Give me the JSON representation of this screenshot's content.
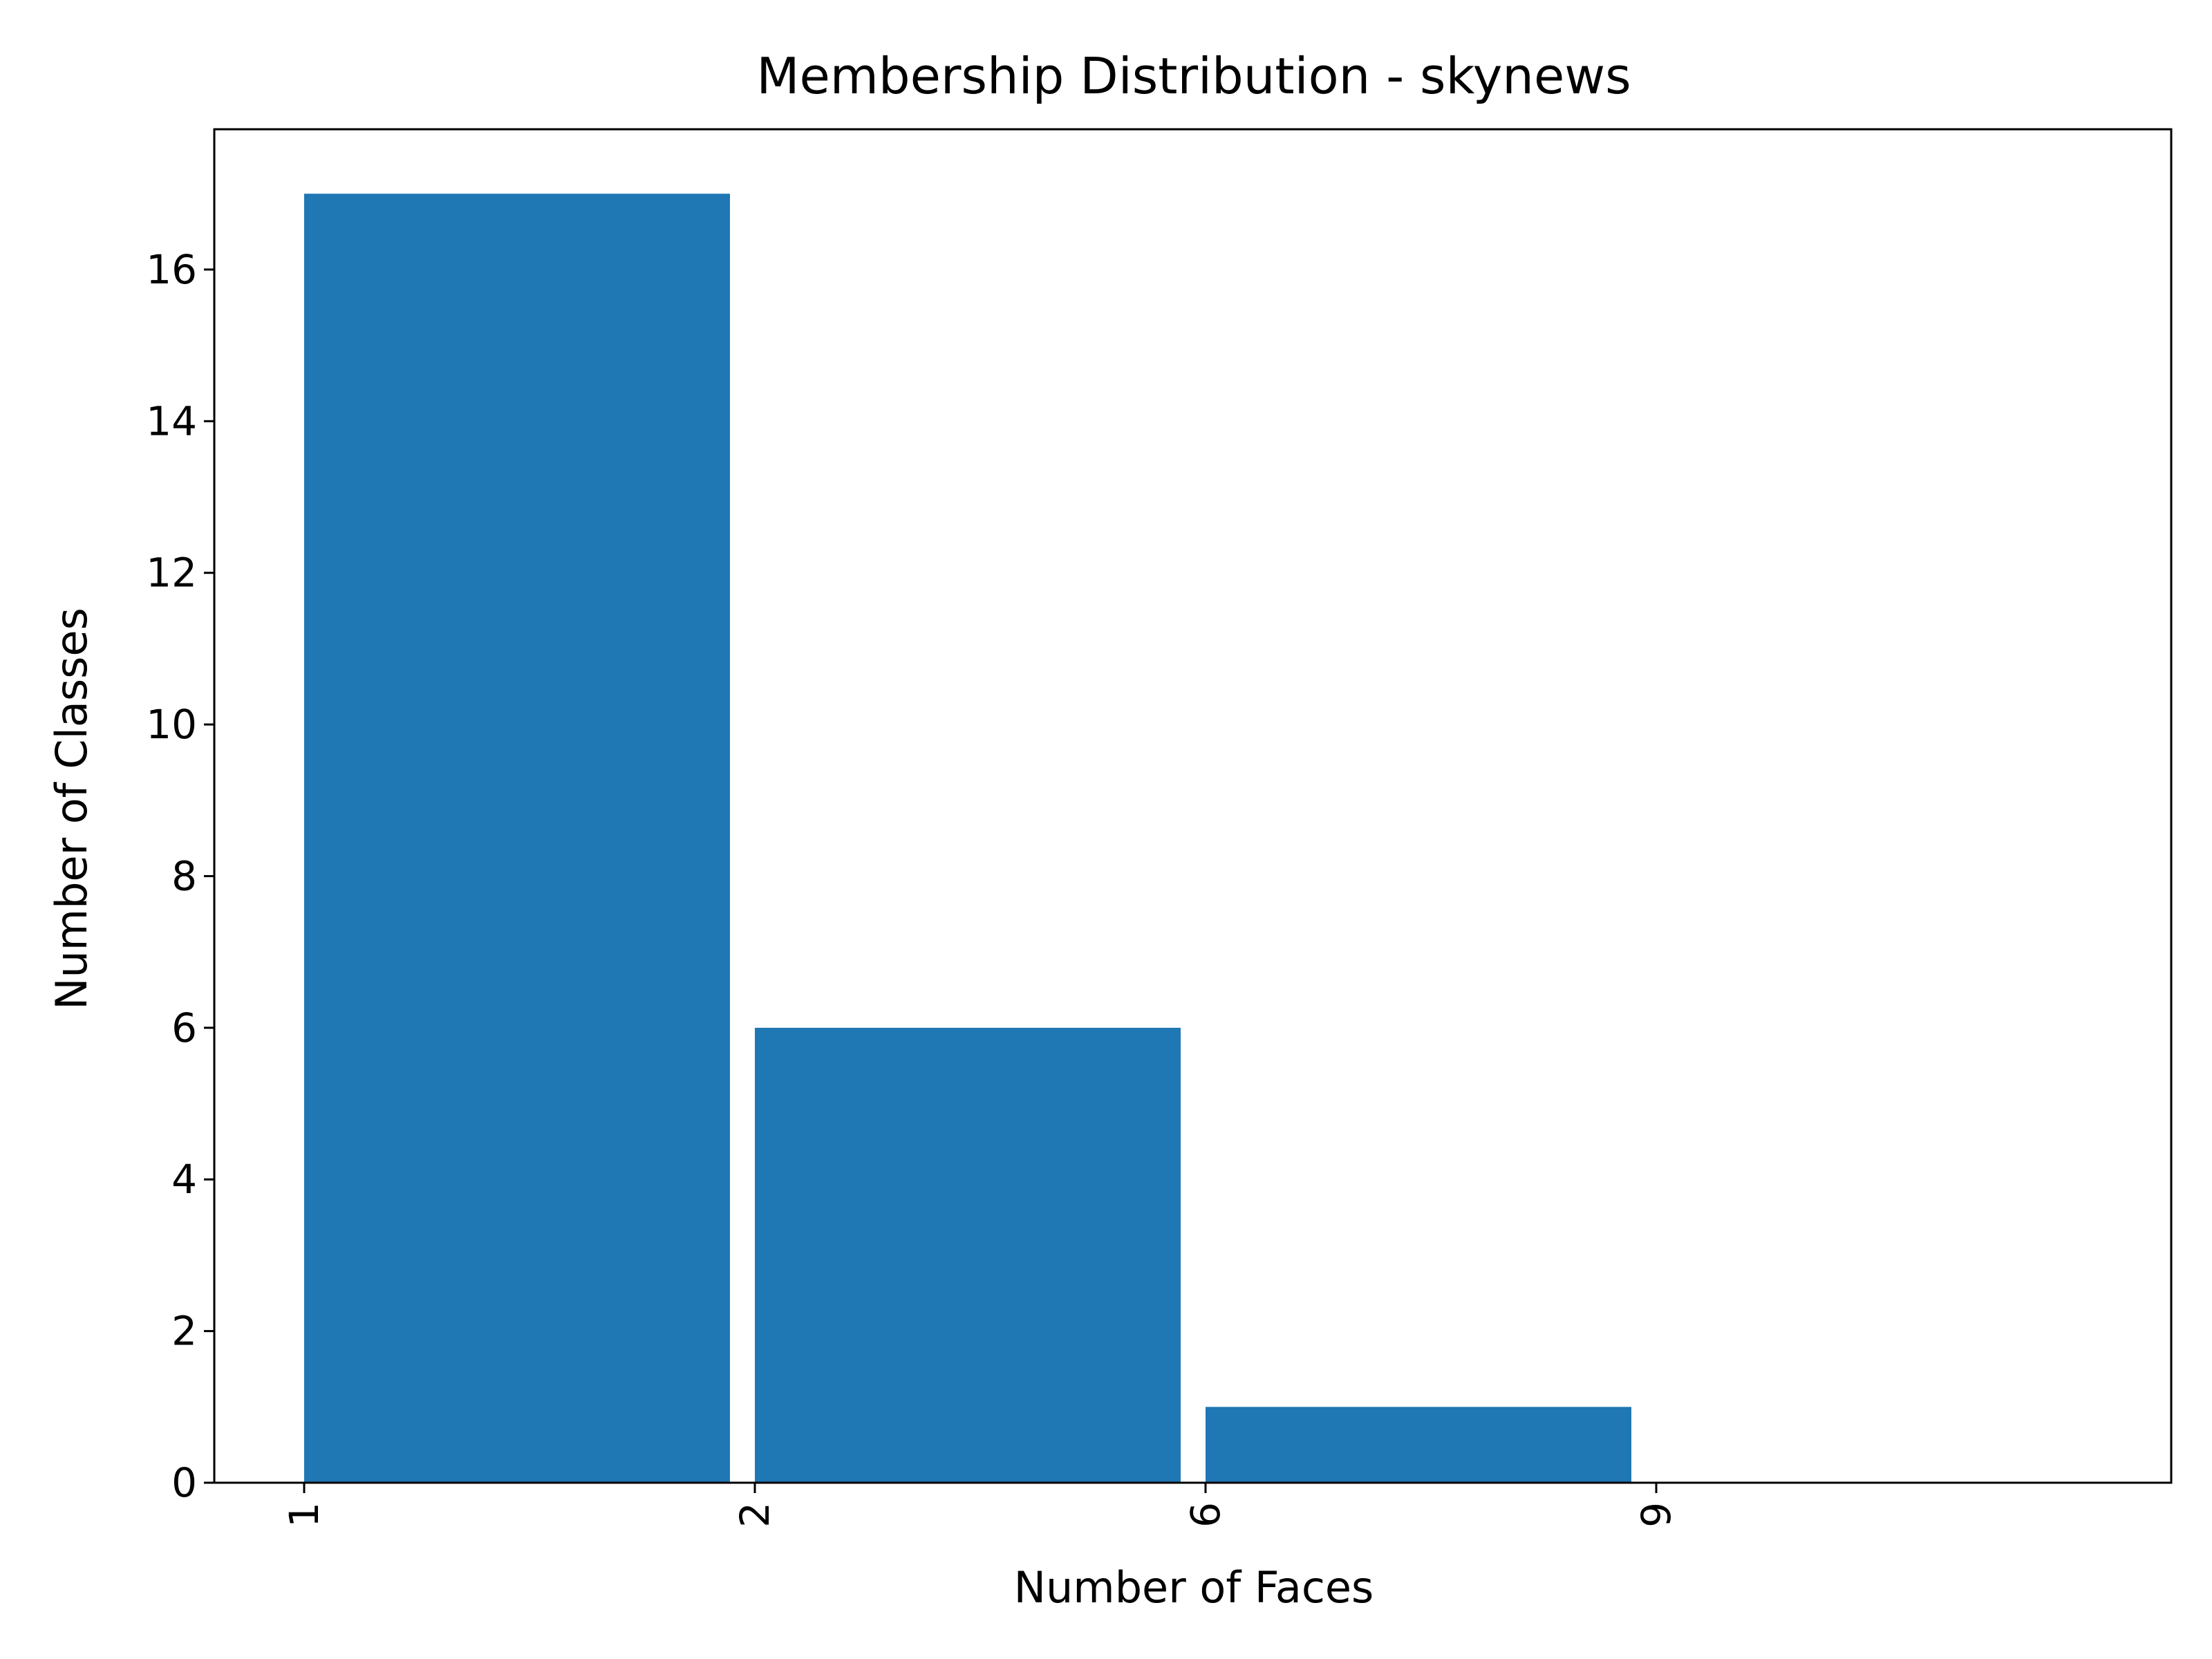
{
  "chart_data": {
    "type": "bar",
    "title": "Membership Distribution - skynews",
    "xlabel": "Number of Faces",
    "ylabel": "Number of Classes",
    "bins": [
      {
        "x_start": 1,
        "x_end": 2,
        "value": 17
      },
      {
        "x_start": 2,
        "x_end": 6,
        "value": 6
      },
      {
        "x_start": 6,
        "x_end": 9,
        "value": 1
      }
    ],
    "x_tick_labels": [
      "1",
      "2",
      "6",
      "9"
    ],
    "x_tick_label_rotation": "vertical",
    "y_ticks": [
      0,
      2,
      4,
      6,
      8,
      10,
      12,
      14,
      16
    ],
    "ylim": [
      0,
      17.85
    ],
    "grid": false,
    "legend": "none",
    "bar_color": "#1f77b4"
  }
}
